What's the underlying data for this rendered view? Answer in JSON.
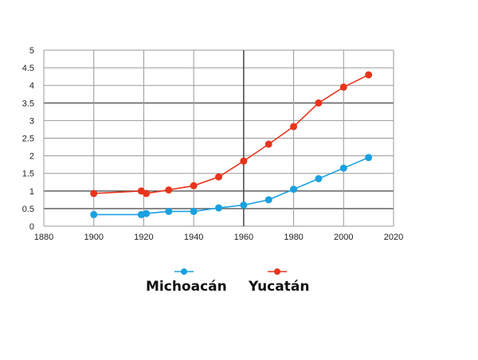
{
  "chart_data": {
    "type": "line",
    "title": "",
    "xlabel": "",
    "ylabel": "",
    "xlim": [
      1880,
      2020
    ],
    "ylim": [
      0,
      5
    ],
    "xticks": [
      1880,
      1900,
      1920,
      1940,
      1960,
      1980,
      2000,
      2020
    ],
    "yticks": [
      0,
      0.5,
      1,
      1.5,
      2,
      2.5,
      3,
      3.5,
      4,
      4.5,
      5
    ],
    "ytick_labels": [
      "0",
      "0.5",
      "1",
      "1.5",
      "2",
      "2.5",
      "3",
      "3.5",
      "4",
      "4.5",
      "5"
    ],
    "grid": true,
    "legend_position": "bottom-center",
    "series": [
      {
        "name": "Michoacán",
        "color": "#1aa0e0",
        "x": [
          1900,
          1919,
          1921,
          1930,
          1940,
          1950,
          1960,
          1970,
          1980,
          1990,
          2000,
          2010
        ],
        "y": [
          0.33,
          0.33,
          0.36,
          0.42,
          0.42,
          0.52,
          0.6,
          0.75,
          1.05,
          1.35,
          1.65,
          1.95
        ]
      },
      {
        "name": "Yucatán",
        "color": "#e8341c",
        "x": [
          1900,
          1919,
          1921,
          1930,
          1940,
          1950,
          1960,
          1970,
          1980,
          1990,
          2000,
          2010
        ],
        "y": [
          0.93,
          1.0,
          0.93,
          1.03,
          1.15,
          1.4,
          1.85,
          2.33,
          2.83,
          3.5,
          3.95,
          4.3
        ]
      }
    ]
  }
}
